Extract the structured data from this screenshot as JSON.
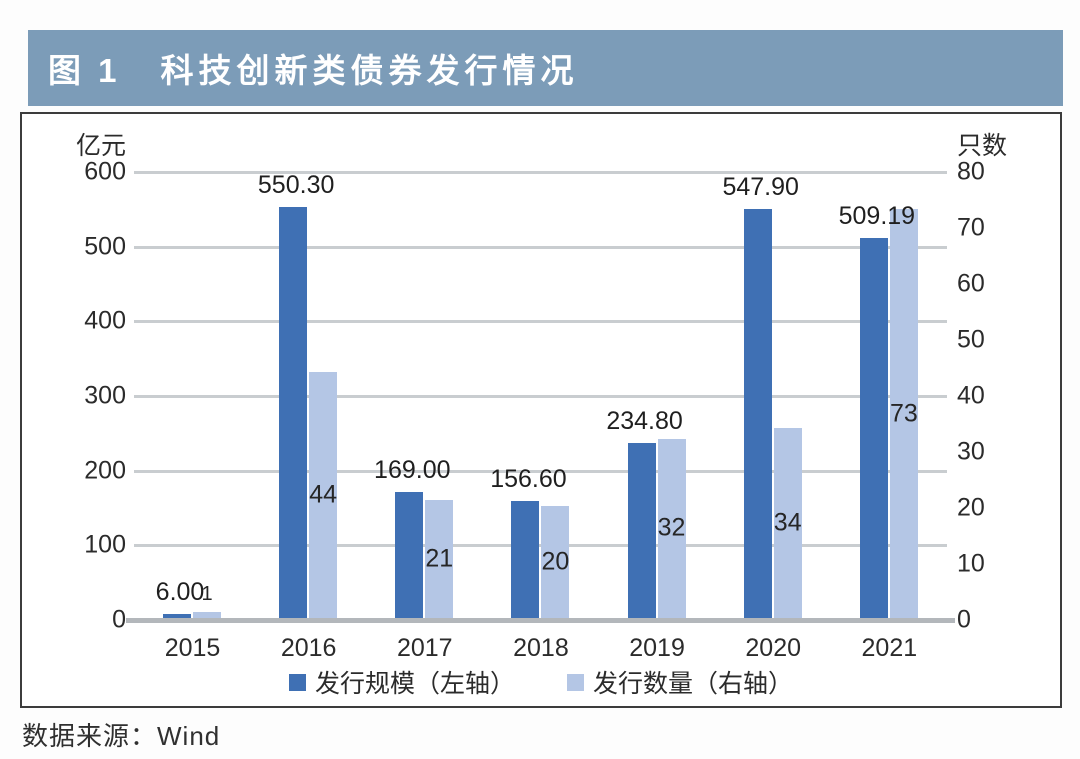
{
  "header": {
    "figure_number": "图 1",
    "title": "科技创新类债券发行情况"
  },
  "source_note": "数据来源：Wind",
  "colors": {
    "title_bar_bg": "#7c9cb8",
    "title_text": "#ffffff",
    "bar_dark": "#3f70b4",
    "bar_light": "#b4c6e5",
    "gridline": "#c9cdd0",
    "axis_line": "#b3b7bb",
    "box_border": "#3c3c3c"
  },
  "chart_data": {
    "type": "bar",
    "title": "科技创新类债券发行情况",
    "categories": [
      "2015",
      "2016",
      "2017",
      "2018",
      "2019",
      "2020",
      "2021"
    ],
    "series": [
      {
        "name": "发行规模（左轴）",
        "axis": "left",
        "color": "#3f70b4",
        "values": [
          6.0,
          550.3,
          169.0,
          156.6,
          234.8,
          547.9,
          509.19
        ],
        "data_labels": [
          "6.00",
          "550.30",
          "169.00",
          "156.60",
          "234.80",
          "547.90",
          "509.19"
        ]
      },
      {
        "name": "发行数量（右轴）",
        "axis": "right",
        "color": "#b4c6e5",
        "values": [
          1,
          44,
          21,
          20,
          32,
          34,
          73
        ],
        "data_labels": [
          "1",
          "44",
          "21",
          "20",
          "32",
          "34",
          "73"
        ]
      }
    ],
    "left_axis": {
      "title": "亿元",
      "min": 0,
      "max": 600,
      "step": 100,
      "ticks": [
        600,
        500,
        400,
        300,
        200,
        100,
        0
      ]
    },
    "right_axis": {
      "title": "只数",
      "min": 0,
      "max": 80,
      "step": 10,
      "ticks": [
        80,
        70,
        60,
        50,
        40,
        30,
        20,
        10,
        0
      ]
    },
    "grid": true,
    "legend_position": "bottom"
  }
}
